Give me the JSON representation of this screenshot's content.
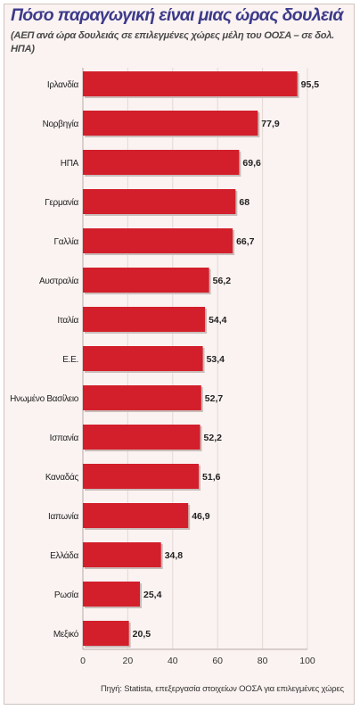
{
  "header": {
    "title": "Πόσο παραγωγική είναι μιας ώρας δουλειά",
    "subtitle": "(ΑΕΠ ανά ώρα δουλειάς σε επιλεγμένες χώρες μέλη του ΟΟΣΑ – σε δολ. ΗΠΑ)"
  },
  "source": "Πηγή: Statista, επεξεργασία στοιχείων ΟΟΣΑ για επιλεγμένες χώρες",
  "colors": {
    "bar": "#d21f2b",
    "background": "#fbf3f1",
    "title": "#3c3a8a"
  },
  "chart_data": {
    "type": "bar",
    "orientation": "horizontal",
    "categories": [
      "Ιρλανδία",
      "Νορβηγία",
      "ΗΠΑ",
      "Γερμανία",
      "Γαλλία",
      "Αυστραλία",
      "Ιταλία",
      "Ε.Ε.",
      "Ηνωμένο Βασίλειο",
      "Ισπανία",
      "Καναδάς",
      "Ιαπωνία",
      "Ελλάδα",
      "Ρωσία",
      "Μεξικό"
    ],
    "values": [
      95.5,
      77.9,
      69.6,
      68,
      66.7,
      56.2,
      54.4,
      53.4,
      52.7,
      52.2,
      51.6,
      46.9,
      34.8,
      25.4,
      20.5
    ],
    "value_labels": [
      "95,5",
      "77,9",
      "69,6",
      "68",
      "66,7",
      "56,2",
      "54,4",
      "53,4",
      "52,7",
      "52,2",
      "51,6",
      "46,9",
      "34,8",
      "25,4",
      "20,5"
    ],
    "xlim": [
      0,
      100
    ],
    "xticks": [
      0,
      20,
      40,
      60,
      80,
      100
    ],
    "xtick_labels": [
      "0",
      "20",
      "40",
      "60",
      "80",
      "100"
    ],
    "grid": "vertical",
    "legend": "none"
  }
}
